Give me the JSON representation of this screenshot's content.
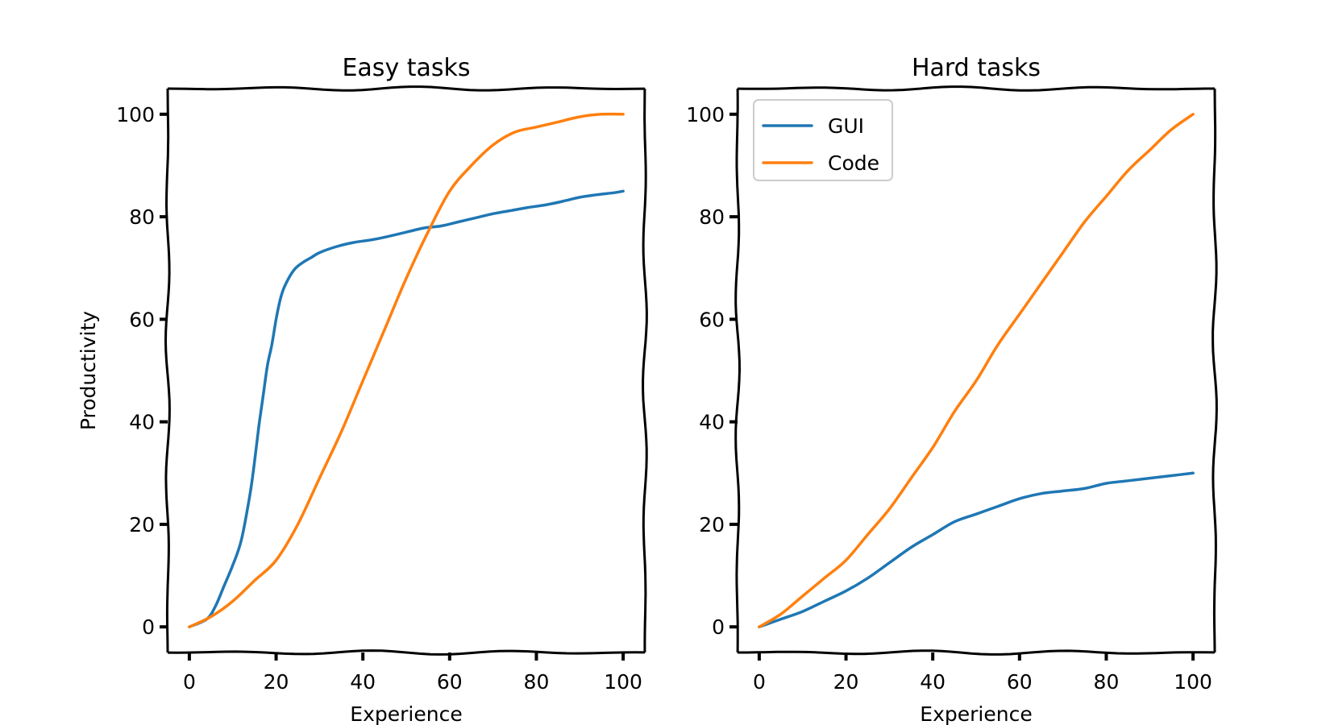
{
  "chart_data": [
    {
      "type": "line",
      "title": "Easy tasks",
      "xlabel": "Experience",
      "ylabel": "Productivity",
      "xlim": [
        -5,
        105
      ],
      "ylim": [
        -5,
        105
      ],
      "xticks": [
        0,
        20,
        40,
        60,
        80,
        100
      ],
      "yticks": [
        0,
        20,
        40,
        60,
        80,
        100
      ],
      "grid": false,
      "series": [
        {
          "name": "GUI",
          "color": "#1f77b4",
          "x": [
            0,
            4,
            6,
            8,
            10,
            12,
            14,
            15,
            16,
            17,
            18,
            19,
            20,
            21,
            22,
            24,
            26,
            28,
            30,
            34,
            38,
            42,
            46,
            50,
            54,
            58,
            62,
            66,
            70,
            74,
            78,
            82,
            86,
            90,
            94,
            98,
            100
          ],
          "y": [
            0,
            1.5,
            4,
            8,
            12,
            17,
            26,
            32,
            39,
            45,
            51,
            55,
            60,
            64,
            66.5,
            69.5,
            71,
            72,
            73,
            74.2,
            75,
            75.5,
            76.2,
            77,
            77.8,
            78.2,
            79,
            79.8,
            80.6,
            81.2,
            81.8,
            82.3,
            83,
            83.8,
            84.3,
            84.7,
            85
          ]
        },
        {
          "name": "Code",
          "color": "#ff7f0e",
          "x": [
            0,
            5,
            10,
            15,
            20,
            25,
            30,
            35,
            40,
            45,
            50,
            55,
            60,
            65,
            70,
            75,
            80,
            85,
            90,
            95,
            100
          ],
          "y": [
            0,
            2,
            5,
            9,
            13,
            20,
            29,
            38,
            48,
            58,
            68,
            77,
            85,
            90,
            94,
            96.5,
            97.5,
            98.5,
            99.5,
            100,
            100
          ]
        }
      ]
    },
    {
      "type": "line",
      "title": "Hard tasks",
      "xlabel": "Experience",
      "ylabel": "",
      "xlim": [
        -5,
        105
      ],
      "ylim": [
        -5,
        105
      ],
      "xticks": [
        0,
        20,
        40,
        60,
        80,
        100
      ],
      "yticks": [
        0,
        20,
        40,
        60,
        80,
        100
      ],
      "grid": false,
      "legend": "top-left",
      "series": [
        {
          "name": "GUI",
          "color": "#1f77b4",
          "x": [
            0,
            5,
            10,
            15,
            20,
            25,
            30,
            35,
            40,
            45,
            50,
            55,
            60,
            65,
            70,
            75,
            80,
            85,
            90,
            95,
            100
          ],
          "y": [
            0,
            1.5,
            3,
            5,
            7,
            9.5,
            12.5,
            15.5,
            18,
            20.5,
            22,
            23.5,
            25,
            26,
            26.5,
            27,
            28,
            28.5,
            29,
            29.5,
            30
          ]
        },
        {
          "name": "Code",
          "color": "#ff7f0e",
          "x": [
            0,
            5,
            10,
            15,
            20,
            25,
            30,
            35,
            40,
            45,
            50,
            55,
            60,
            65,
            70,
            75,
            80,
            85,
            90,
            95,
            100
          ],
          "y": [
            0,
            2.5,
            6,
            9.5,
            13,
            18,
            23,
            29,
            35,
            42,
            48,
            55,
            61,
            67,
            73,
            79,
            84,
            89,
            93,
            97,
            100
          ]
        }
      ]
    }
  ]
}
